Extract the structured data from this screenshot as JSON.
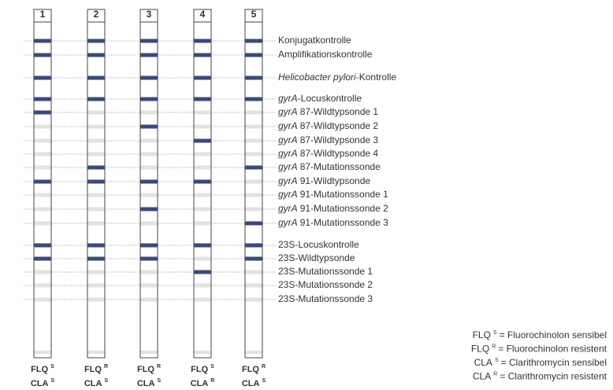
{
  "rows": [
    {
      "text": "Konjugatkontrolle"
    },
    {
      "text": "Amplifikationskontrolle"
    },
    {
      "prefix": "Helicobacter pylori",
      "text": "-Kontrolle"
    },
    {
      "prefix": "gyrA",
      "text": "-Locuskontrolle"
    },
    {
      "prefix": "gyrA",
      "text": "87-Wildtypsonde 1"
    },
    {
      "prefix": "gyrA",
      "text": "87-Wildtypsonde 2"
    },
    {
      "prefix": "gyrA",
      "text": "87-Wildtypsonde 3"
    },
    {
      "prefix": "gyrA",
      "text": "87-Wildtypsonde 4"
    },
    {
      "prefix": "gyrA",
      "text": "87-Mutationssonde"
    },
    {
      "prefix": "gyrA",
      "text": "91-Wildtypsonde"
    },
    {
      "prefix": "gyrA",
      "text": "91-Mutationssonde 1"
    },
    {
      "prefix": "gyrA",
      "text": "91-Mutationssonde 2"
    },
    {
      "prefix": "gyrA",
      "text": "91-Mutationssonde 3"
    },
    {
      "text": "23S-Locuskontrolle"
    },
    {
      "text": "23S-Wildtypsonde"
    },
    {
      "text": "23S-Mutationssonde 1"
    },
    {
      "text": "23S-Mutationssonde 2"
    },
    {
      "text": "23S-Mutationssonde 3"
    }
  ],
  "strips": [
    {
      "number": "1",
      "flq": "FLQ",
      "flq_sup": "S",
      "cla": "CLA",
      "cla_sup": "S",
      "bands": [
        true,
        true,
        true,
        true,
        true,
        false,
        false,
        false,
        false,
        true,
        false,
        false,
        false,
        true,
        true,
        false,
        false,
        false
      ]
    },
    {
      "number": "2",
      "flq": "FLQ",
      "flq_sup": "R",
      "cla": "CLA",
      "cla_sup": "S",
      "bands": [
        true,
        true,
        true,
        true,
        false,
        false,
        false,
        false,
        true,
        true,
        false,
        false,
        false,
        true,
        true,
        false,
        false,
        false
      ]
    },
    {
      "number": "3",
      "flq": "FLQ",
      "flq_sup": "R",
      "cla": "CLA",
      "cla_sup": "S",
      "bands": [
        true,
        true,
        true,
        true,
        false,
        true,
        false,
        false,
        false,
        true,
        false,
        true,
        false,
        true,
        true,
        false,
        false,
        false
      ]
    },
    {
      "number": "4",
      "flq": "FLQ",
      "flq_sup": "S",
      "cla": "CLA",
      "cla_sup": "R",
      "bands": [
        true,
        true,
        true,
        true,
        false,
        false,
        true,
        false,
        false,
        true,
        false,
        false,
        false,
        true,
        false,
        true,
        false,
        false
      ]
    },
    {
      "number": "5",
      "flq": "FLQ",
      "flq_sup": "R",
      "cla": "CLA",
      "cla_sup": "S",
      "bands": [
        true,
        true,
        true,
        true,
        false,
        false,
        false,
        false,
        true,
        false,
        false,
        false,
        true,
        true,
        true,
        false,
        false,
        false
      ]
    }
  ],
  "legend": [
    {
      "drug": "FLQ",
      "sup": "S",
      "text": "= Fluorochinolon sensibel"
    },
    {
      "drug": "FLQ",
      "sup": "R",
      "text": "= Fluorochinolon resistent"
    },
    {
      "drug": "CLA",
      "sup": "S",
      "text": "= Clarithromycin sensibel"
    },
    {
      "drug": "CLA",
      "sup": "R",
      "text": "= Clarithromycin resistent"
    }
  ]
}
